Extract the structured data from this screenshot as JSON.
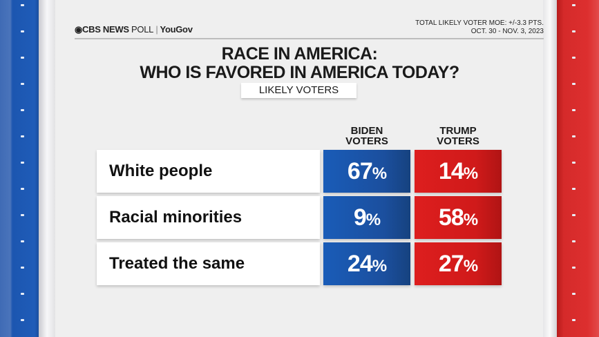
{
  "header": {
    "brand": "CBS NEWS",
    "brand_light": "POLL",
    "partner": "YouGov",
    "moe": "TOTAL LIKELY VOTER MOE: +/-3.3 PTS.",
    "dates": "OCT. 30 - NOV. 3, 2023"
  },
  "title_line1": "RACE IN AMERICA:",
  "title_line2": "WHO IS FAVORED IN AMERICA TODAY?",
  "subtitle": "LIKELY VOTERS",
  "colors": {
    "biden": "#1b56ad",
    "trump": "#d41c1c"
  },
  "chart_data": {
    "type": "table",
    "title": "RACE IN AMERICA: WHO IS FAVORED IN AMERICA TODAY?",
    "subtitle": "LIKELY VOTERS",
    "columns": [
      {
        "line1": "BIDEN",
        "line2": "VOTERS"
      },
      {
        "line1": "TRUMP",
        "line2": "VOTERS"
      }
    ],
    "rows": [
      {
        "label": "White people",
        "values": [
          "67",
          "14"
        ]
      },
      {
        "label": "Racial minorities",
        "values": [
          "9",
          "58"
        ]
      },
      {
        "label": "Treated the same",
        "values": [
          "24",
          "27"
        ]
      }
    ],
    "unit": "%"
  }
}
